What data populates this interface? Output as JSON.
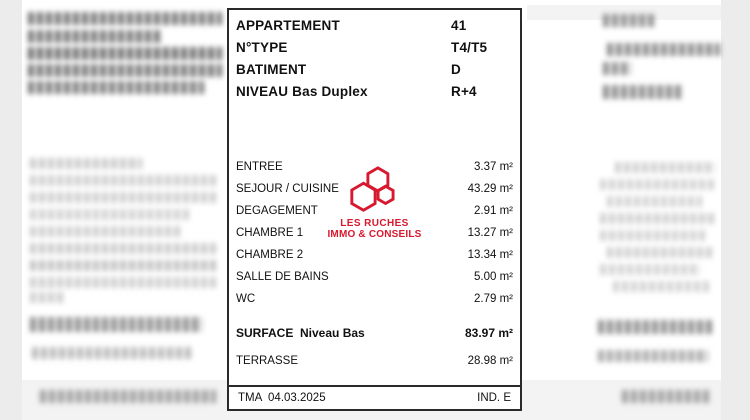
{
  "colors": {
    "accent": "#d7182e",
    "ink": "#2a2a2a"
  },
  "sheet": {
    "header_rows": [
      {
        "label": "APPARTEMENT",
        "value": "41"
      },
      {
        "label": "N°TYPE",
        "value": "T4/T5"
      },
      {
        "label": "BATIMENT",
        "value": "D"
      },
      {
        "label": "NIVEAU Bas Duplex",
        "value": "R+4"
      }
    ],
    "rooms": [
      {
        "label": "ENTREE",
        "value": "3.37 m²"
      },
      {
        "label": "SEJOUR / CUISINE",
        "value": "43.29 m²"
      },
      {
        "label": "DEGAGEMENT",
        "value": "2.91 m²"
      },
      {
        "label": "CHAMBRE 1",
        "value": "13.27 m²"
      },
      {
        "label": "CHAMBRE 2",
        "value": "13.34 m²"
      },
      {
        "label": "SALLE DE BAINS",
        "value": "5.00 m²"
      },
      {
        "label": "WC",
        "value": "2.79 m²"
      }
    ],
    "summary": {
      "surface_label": "SURFACE  Niveau Bas",
      "surface_value": "83.97 m²",
      "terrasse_label": "TERRASSE",
      "terrasse_value": "28.98 m²"
    },
    "footer": {
      "left": "TMA  04.03.2025",
      "right": "IND. E"
    },
    "logo": {
      "line1": "LES RUCHES",
      "line2": "IMMO & CONSEILS"
    }
  }
}
